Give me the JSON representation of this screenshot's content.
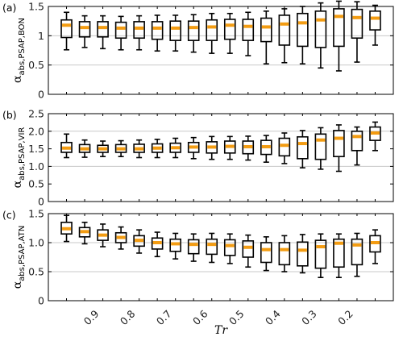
{
  "chart_data": [
    {
      "type": "boxplot",
      "panel_label": "(a)",
      "ylabel_main": "α",
      "ylabel_sub": "abs,PSAP,BON",
      "ylim": [
        0,
        1.5
      ],
      "yticks": [
        0,
        0.5,
        1,
        1.5
      ],
      "ytick_labels": [
        "0",
        "0.5",
        "1",
        "1.5"
      ],
      "grid_y": [
        0.5,
        1.0
      ],
      "boxes": [
        {
          "whisker_low": 0.76,
          "q1": 0.97,
          "median": 1.18,
          "q3": 1.27,
          "whisker_high": 1.4
        },
        {
          "whisker_low": 0.8,
          "q1": 0.98,
          "median": 1.14,
          "q3": 1.24,
          "whisker_high": 1.34
        },
        {
          "whisker_low": 0.78,
          "q1": 0.98,
          "median": 1.14,
          "q3": 1.24,
          "whisker_high": 1.34
        },
        {
          "whisker_low": 0.76,
          "q1": 0.96,
          "median": 1.13,
          "q3": 1.23,
          "whisker_high": 1.33
        },
        {
          "whisker_low": 0.76,
          "q1": 0.96,
          "median": 1.13,
          "q3": 1.24,
          "whisker_high": 1.34
        },
        {
          "whisker_low": 0.74,
          "q1": 0.94,
          "median": 1.13,
          "q3": 1.24,
          "whisker_high": 1.35
        },
        {
          "whisker_low": 0.74,
          "q1": 0.92,
          "median": 1.13,
          "q3": 1.25,
          "whisker_high": 1.35
        },
        {
          "whisker_low": 0.72,
          "q1": 0.92,
          "median": 1.14,
          "q3": 1.25,
          "whisker_high": 1.36
        },
        {
          "whisker_low": 0.7,
          "q1": 0.92,
          "median": 1.15,
          "q3": 1.27,
          "whisker_high": 1.38
        },
        {
          "whisker_low": 0.7,
          "q1": 0.94,
          "median": 1.18,
          "q3": 1.28,
          "whisker_high": 1.38
        },
        {
          "whisker_low": 0.66,
          "q1": 0.92,
          "median": 1.16,
          "q3": 1.28,
          "whisker_high": 1.4
        },
        {
          "whisker_low": 0.52,
          "q1": 0.9,
          "median": 1.15,
          "q3": 1.3,
          "whisker_high": 1.42
        },
        {
          "whisker_low": 0.54,
          "q1": 0.84,
          "median": 1.2,
          "q3": 1.35,
          "whisker_high": 1.46
        },
        {
          "whisker_low": 0.52,
          "q1": 0.82,
          "median": 1.22,
          "q3": 1.38,
          "whisker_high": 1.5
        },
        {
          "whisker_low": 0.45,
          "q1": 0.8,
          "median": 1.27,
          "q3": 1.42,
          "whisker_high": 1.56
        },
        {
          "whisker_low": 0.4,
          "q1": 0.82,
          "median": 1.33,
          "q3": 1.46,
          "whisker_high": 1.59
        },
        {
          "whisker_low": 0.55,
          "q1": 0.96,
          "median": 1.31,
          "q3": 1.45,
          "whisker_high": 1.58
        },
        {
          "whisker_low": 0.84,
          "q1": 1.1,
          "median": 1.3,
          "q3": 1.42,
          "whisker_high": 1.52
        }
      ]
    },
    {
      "type": "boxplot",
      "panel_label": "(b)",
      "ylabel_main": "α",
      "ylabel_sub": "abs,PSAP,VIR",
      "ylim": [
        0,
        2.5
      ],
      "yticks": [
        0,
        0.5,
        1,
        1.5,
        2,
        2.5
      ],
      "ytick_labels": [
        "0",
        "0.5",
        "1.0",
        "1.5",
        "2.0",
        "2.5"
      ],
      "grid_y": [
        1.0,
        2.0
      ],
      "boxes": [
        {
          "whisker_low": 1.25,
          "q1": 1.4,
          "median": 1.52,
          "q3": 1.68,
          "whisker_high": 1.92
        },
        {
          "whisker_low": 1.26,
          "q1": 1.4,
          "median": 1.5,
          "q3": 1.62,
          "whisker_high": 1.75
        },
        {
          "whisker_low": 1.28,
          "q1": 1.4,
          "median": 1.5,
          "q3": 1.6,
          "whisker_high": 1.72
        },
        {
          "whisker_low": 1.28,
          "q1": 1.4,
          "median": 1.5,
          "q3": 1.62,
          "whisker_high": 1.73
        },
        {
          "whisker_low": 1.25,
          "q1": 1.4,
          "median": 1.5,
          "q3": 1.63,
          "whisker_high": 1.75
        },
        {
          "whisker_low": 1.25,
          "q1": 1.4,
          "median": 1.52,
          "q3": 1.64,
          "whisker_high": 1.77
        },
        {
          "whisker_low": 1.25,
          "q1": 1.4,
          "median": 1.53,
          "q3": 1.66,
          "whisker_high": 1.8
        },
        {
          "whisker_low": 1.22,
          "q1": 1.4,
          "median": 1.55,
          "q3": 1.68,
          "whisker_high": 1.82
        },
        {
          "whisker_low": 1.2,
          "q1": 1.38,
          "median": 1.55,
          "q3": 1.7,
          "whisker_high": 1.85
        },
        {
          "whisker_low": 1.2,
          "q1": 1.38,
          "median": 1.57,
          "q3": 1.72,
          "whisker_high": 1.85
        },
        {
          "whisker_low": 1.18,
          "q1": 1.36,
          "median": 1.56,
          "q3": 1.72,
          "whisker_high": 1.86
        },
        {
          "whisker_low": 1.12,
          "q1": 1.34,
          "median": 1.56,
          "q3": 1.74,
          "whisker_high": 1.88
        },
        {
          "whisker_low": 1.08,
          "q1": 1.3,
          "median": 1.6,
          "q3": 1.8,
          "whisker_high": 1.95
        },
        {
          "whisker_low": 0.96,
          "q1": 1.22,
          "median": 1.65,
          "q3": 1.84,
          "whisker_high": 2.02
        },
        {
          "whisker_low": 0.92,
          "q1": 1.2,
          "median": 1.75,
          "q3": 1.92,
          "whisker_high": 2.1
        },
        {
          "whisker_low": 0.86,
          "q1": 1.28,
          "median": 1.8,
          "q3": 2.02,
          "whisker_high": 2.18
        },
        {
          "whisker_low": 1.04,
          "q1": 1.45,
          "median": 1.85,
          "q3": 2.0,
          "whisker_high": 2.12
        },
        {
          "whisker_low": 1.45,
          "q1": 1.74,
          "median": 1.95,
          "q3": 2.12,
          "whisker_high": 2.26
        }
      ]
    },
    {
      "type": "boxplot",
      "panel_label": "(c)",
      "ylabel_main": "α",
      "ylabel_sub": "abs,PSAP,ATN",
      "ylim": [
        0,
        1.5
      ],
      "yticks": [
        0,
        0.5,
        1,
        1.5
      ],
      "ytick_labels": [
        "0",
        "0.5",
        "1.0",
        "1.5"
      ],
      "grid_y": [
        0.5,
        1.0
      ],
      "xlabel": "Tr",
      "xtick_positions": [
        2,
        4,
        6,
        8,
        10,
        12,
        14,
        16
      ],
      "xtick_labels": [
        "0.9",
        "0.8",
        "0.7",
        "0.6",
        "0.5",
        "0.4",
        "0.3",
        "0.2"
      ],
      "boxes": [
        {
          "whisker_low": 1.02,
          "q1": 1.15,
          "median": 1.24,
          "q3": 1.35,
          "whisker_high": 1.47
        },
        {
          "whisker_low": 0.98,
          "q1": 1.1,
          "median": 1.19,
          "q3": 1.26,
          "whisker_high": 1.35
        },
        {
          "whisker_low": 0.93,
          "q1": 1.04,
          "median": 1.13,
          "q3": 1.22,
          "whisker_high": 1.32
        },
        {
          "whisker_low": 0.89,
          "q1": 1.0,
          "median": 1.09,
          "q3": 1.17,
          "whisker_high": 1.27
        },
        {
          "whisker_low": 0.82,
          "q1": 0.94,
          "median": 1.04,
          "q3": 1.12,
          "whisker_high": 1.22
        },
        {
          "whisker_low": 0.76,
          "q1": 0.89,
          "median": 1.0,
          "q3": 1.08,
          "whisker_high": 1.18
        },
        {
          "whisker_low": 0.72,
          "q1": 0.85,
          "median": 0.98,
          "q3": 1.06,
          "whisker_high": 1.16
        },
        {
          "whisker_low": 0.68,
          "q1": 0.81,
          "median": 0.97,
          "q3": 1.05,
          "whisker_high": 1.15
        },
        {
          "whisker_low": 0.66,
          "q1": 0.8,
          "median": 0.97,
          "q3": 1.06,
          "whisker_high": 1.16
        },
        {
          "whisker_low": 0.64,
          "q1": 0.78,
          "median": 0.95,
          "q3": 1.05,
          "whisker_high": 1.15
        },
        {
          "whisker_low": 0.58,
          "q1": 0.75,
          "median": 0.92,
          "q3": 1.03,
          "whisker_high": 1.13
        },
        {
          "whisker_low": 0.52,
          "q1": 0.66,
          "median": 0.88,
          "q3": 1.0,
          "whisker_high": 1.1
        },
        {
          "whisker_low": 0.5,
          "q1": 0.62,
          "median": 0.88,
          "q3": 1.0,
          "whisker_high": 1.12
        },
        {
          "whisker_low": 0.48,
          "q1": 0.6,
          "median": 0.87,
          "q3": 1.01,
          "whisker_high": 1.14
        },
        {
          "whisker_low": 0.4,
          "q1": 0.56,
          "median": 0.93,
          "q3": 1.04,
          "whisker_high": 1.15
        },
        {
          "whisker_low": 0.4,
          "q1": 0.58,
          "median": 0.99,
          "q3": 1.06,
          "whisker_high": 1.15
        },
        {
          "whisker_low": 0.42,
          "q1": 0.62,
          "median": 0.96,
          "q3": 1.06,
          "whisker_high": 1.16
        },
        {
          "whisker_low": 0.64,
          "q1": 0.84,
          "median": 1.0,
          "q3": 1.12,
          "whisker_high": 1.22
        }
      ]
    }
  ],
  "colors": {
    "median": "#f39c12",
    "box": "#000000",
    "grid": "#c8c8c8"
  }
}
